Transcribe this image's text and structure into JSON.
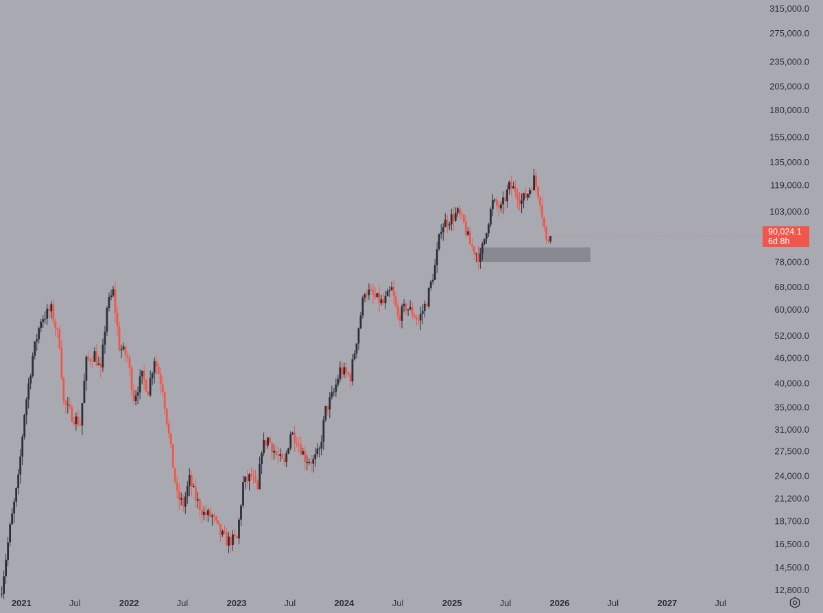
{
  "chart_data": {
    "type": "candlestick",
    "symbol": "",
    "timeframe": "weekly",
    "y_scale": "log",
    "ylim": [
      11500,
      330000
    ],
    "xlim": [
      "2020-10-20",
      "2027-10-10"
    ],
    "grid": false,
    "legend": "none",
    "y_ticks": [
      {
        "value": 315000,
        "label": "315,000.0"
      },
      {
        "value": 275000,
        "label": "275,000.0"
      },
      {
        "value": 235000,
        "label": "235,000.0"
      },
      {
        "value": 205000,
        "label": "205,000.0"
      },
      {
        "value": 180000,
        "label": "180,000.0"
      },
      {
        "value": 155000,
        "label": "155,000.0"
      },
      {
        "value": 135000,
        "label": "135,000.0"
      },
      {
        "value": 119000,
        "label": "119,000.0"
      },
      {
        "value": 103000,
        "label": "103,000.0"
      },
      {
        "value": 78000,
        "label": "78,000.0"
      },
      {
        "value": 68000,
        "label": "68,000.0"
      },
      {
        "value": 60000,
        "label": "60,000.0"
      },
      {
        "value": 52000,
        "label": "52,000.0"
      },
      {
        "value": 46000,
        "label": "46,000.0"
      },
      {
        "value": 40000,
        "label": "40,000.0"
      },
      {
        "value": 35000,
        "label": "35,000.0"
      },
      {
        "value": 31000,
        "label": "31,000.0"
      },
      {
        "value": 27500,
        "label": "27,500.0"
      },
      {
        "value": 24000,
        "label": "24,000.0"
      },
      {
        "value": 21200,
        "label": "21,200.0"
      },
      {
        "value": 18700,
        "label": "18,700.0"
      },
      {
        "value": 16500,
        "label": "16,500.0"
      },
      {
        "value": 14500,
        "label": "14,500.0"
      },
      {
        "value": 12800,
        "label": "12,800.0"
      }
    ],
    "x_ticks": [
      {
        "date": "2021-01-01",
        "label": "2021",
        "bold": true
      },
      {
        "date": "2021-07-01",
        "label": "Jul",
        "bold": false
      },
      {
        "date": "2022-01-01",
        "label": "2022",
        "bold": true
      },
      {
        "date": "2022-07-01",
        "label": "Jul",
        "bold": false
      },
      {
        "date": "2023-01-01",
        "label": "2023",
        "bold": true
      },
      {
        "date": "2023-07-01",
        "label": "Jul",
        "bold": false
      },
      {
        "date": "2024-01-01",
        "label": "2024",
        "bold": true
      },
      {
        "date": "2024-07-01",
        "label": "Jul",
        "bold": false
      },
      {
        "date": "2025-01-01",
        "label": "2025",
        "bold": true
      },
      {
        "date": "2025-07-01",
        "label": "Jul",
        "bold": false
      },
      {
        "date": "2026-01-01",
        "label": "2026",
        "bold": true
      },
      {
        "date": "2026-07-01",
        "label": "Jul",
        "bold": false
      },
      {
        "date": "2027-01-01",
        "label": "2027",
        "bold": true
      },
      {
        "date": "2027-07-01",
        "label": "Jul",
        "bold": false
      }
    ],
    "anchors": [
      [
        "2020-10-26",
        13000
      ],
      [
        "2020-11-23",
        18000
      ],
      [
        "2020-12-21",
        23500
      ],
      [
        "2021-01-11",
        34000
      ],
      [
        "2021-02-08",
        46500
      ],
      [
        "2021-03-08",
        57000
      ],
      [
        "2021-04-12",
        60000
      ],
      [
        "2021-05-10",
        50000
      ],
      [
        "2021-05-24",
        36000
      ],
      [
        "2021-06-21",
        33500
      ],
      [
        "2021-07-19",
        32000
      ],
      [
        "2021-08-09",
        45000
      ],
      [
        "2021-09-06",
        47000
      ],
      [
        "2021-09-27",
        42500
      ],
      [
        "2021-10-18",
        61000
      ],
      [
        "2021-11-08",
        66000
      ],
      [
        "2021-11-29",
        49000
      ],
      [
        "2021-12-27",
        46000
      ],
      [
        "2022-01-17",
        37000
      ],
      [
        "2022-02-14",
        41500
      ],
      [
        "2022-03-07",
        38500
      ],
      [
        "2022-03-28",
        46000
      ],
      [
        "2022-04-25",
        39000
      ],
      [
        "2022-05-16",
        30000
      ],
      [
        "2022-06-13",
        21500
      ],
      [
        "2022-07-04",
        20500
      ],
      [
        "2022-07-25",
        23500
      ],
      [
        "2022-08-15",
        21200
      ],
      [
        "2022-09-12",
        19500
      ],
      [
        "2022-10-10",
        19200
      ],
      [
        "2022-11-07",
        17500
      ],
      [
        "2022-11-28",
        16800
      ],
      [
        "2023-01-02",
        16900
      ],
      [
        "2023-01-23",
        23000
      ],
      [
        "2023-02-20",
        24000
      ],
      [
        "2023-03-13",
        22000
      ],
      [
        "2023-03-27",
        28000
      ],
      [
        "2023-04-17",
        29500
      ],
      [
        "2023-05-15",
        27000
      ],
      [
        "2023-06-12",
        25500
      ],
      [
        "2023-07-03",
        30500
      ],
      [
        "2023-07-24",
        29500
      ],
      [
        "2023-08-21",
        26500
      ],
      [
        "2023-09-18",
        26000
      ],
      [
        "2023-10-09",
        27500
      ],
      [
        "2023-10-30",
        34500
      ],
      [
        "2023-11-27",
        38000
      ],
      [
        "2023-12-18",
        43000
      ],
      [
        "2024-01-22",
        41500
      ],
      [
        "2024-02-12",
        51000
      ],
      [
        "2024-03-11",
        67000
      ],
      [
        "2024-04-15",
        64000
      ],
      [
        "2024-05-13",
        62000
      ],
      [
        "2024-06-10",
        67000
      ],
      [
        "2024-07-01",
        57500
      ],
      [
        "2024-07-29",
        61000
      ],
      [
        "2024-08-19",
        59000
      ],
      [
        "2024-09-09",
        56500
      ],
      [
        "2024-10-07",
        63000
      ],
      [
        "2024-11-04",
        76000
      ],
      [
        "2024-11-25",
        95000
      ],
      [
        "2024-12-16",
        98000
      ],
      [
        "2025-01-20",
        102000
      ],
      [
        "2025-02-10",
        96000
      ],
      [
        "2025-03-03",
        86000
      ],
      [
        "2025-04-07",
        79500
      ],
      [
        "2025-04-28",
        94000
      ],
      [
        "2025-05-19",
        108000
      ],
      [
        "2025-06-16",
        104500
      ],
      [
        "2025-07-14",
        118000
      ],
      [
        "2025-08-04",
        116000
      ],
      [
        "2025-08-25",
        109000
      ],
      [
        "2025-09-15",
        114000
      ],
      [
        "2025-10-06",
        123000
      ],
      [
        "2025-10-27",
        110000
      ],
      [
        "2025-11-17",
        87000
      ],
      [
        "2025-12-01",
        90024
      ]
    ],
    "support_zone": {
      "from": "2025-04-01",
      "to": "2026-04-15",
      "low": 78000,
      "high": 84500
    },
    "last_price": {
      "value": 90024.1,
      "label": "90,024.1",
      "countdown": "6d 8h"
    },
    "colors": {
      "background": "#a9aab1",
      "up_candle": "#2c2f38",
      "down_candle": "#f2564a",
      "axis_text": "#2b2e36",
      "zone": "#82838b",
      "badge": "#f2564a"
    }
  },
  "ui": {
    "settings_icon": "gear-icon"
  }
}
